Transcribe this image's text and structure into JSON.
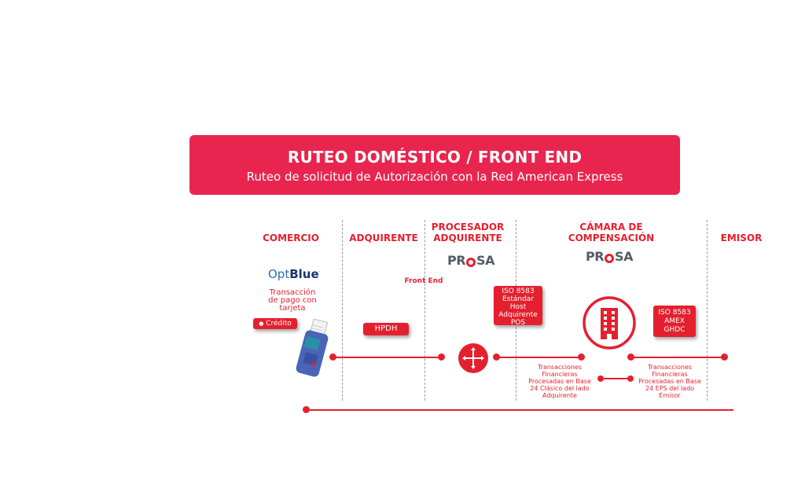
{
  "banner": {
    "title": "RUTEO DOMÉSTICO / FRONT END",
    "subtitle": "Ruteo de solicitud de Autorización con la Red American Express"
  },
  "columns": {
    "comercio": "COMERCIO",
    "adquirente": "ADQUIRENTE",
    "procesador_line1": "PROCESADOR",
    "procesador_line2": "ADQUIRENTE",
    "camara_line1": "CÁMARA DE",
    "camara_line2": "COMPENSACIÓN",
    "emisor": "EMISOR"
  },
  "logos": {
    "optblue_light": "Opt",
    "optblue_bold": "Blue",
    "prosa_left": "PR",
    "prosa_right": "SA"
  },
  "labels": {
    "transaccion_line1": "Transacción",
    "transaccion_line2": "de pago con",
    "transaccion_line3": "tarjeta",
    "credito": "Crédito",
    "hpdh": "HPDH",
    "front_end": "Front End",
    "iso_host_line1": "ISO 8583",
    "iso_host_line2": "Estándar",
    "iso_host_line3": "Host",
    "iso_host_line4": "Adquirente",
    "iso_host_line5": "POS",
    "iso_amex_line1": "ISO 8583",
    "iso_amex_line2": "AMEX",
    "iso_amex_line3": "GHDC",
    "trans_acq_line1": "Transacciones",
    "trans_acq_line2": "Financieras",
    "trans_acq_line3": "Procesadas en Base",
    "trans_acq_line4": "24 Clásico del lado",
    "trans_acq_line5": "Adquirente",
    "trans_em_line1": "Transacciones",
    "trans_em_line2": "Financieras",
    "trans_em_line3": "Procesadas en Base",
    "trans_em_line4": "24 EPS del lado",
    "trans_em_line5": "Emisor"
  },
  "icons": {
    "pos": "pos-terminal-icon",
    "router": "arrows-cross-icon",
    "building": "building-icon"
  },
  "colors": {
    "accent": "#e8254f",
    "red": "#e4202f"
  }
}
